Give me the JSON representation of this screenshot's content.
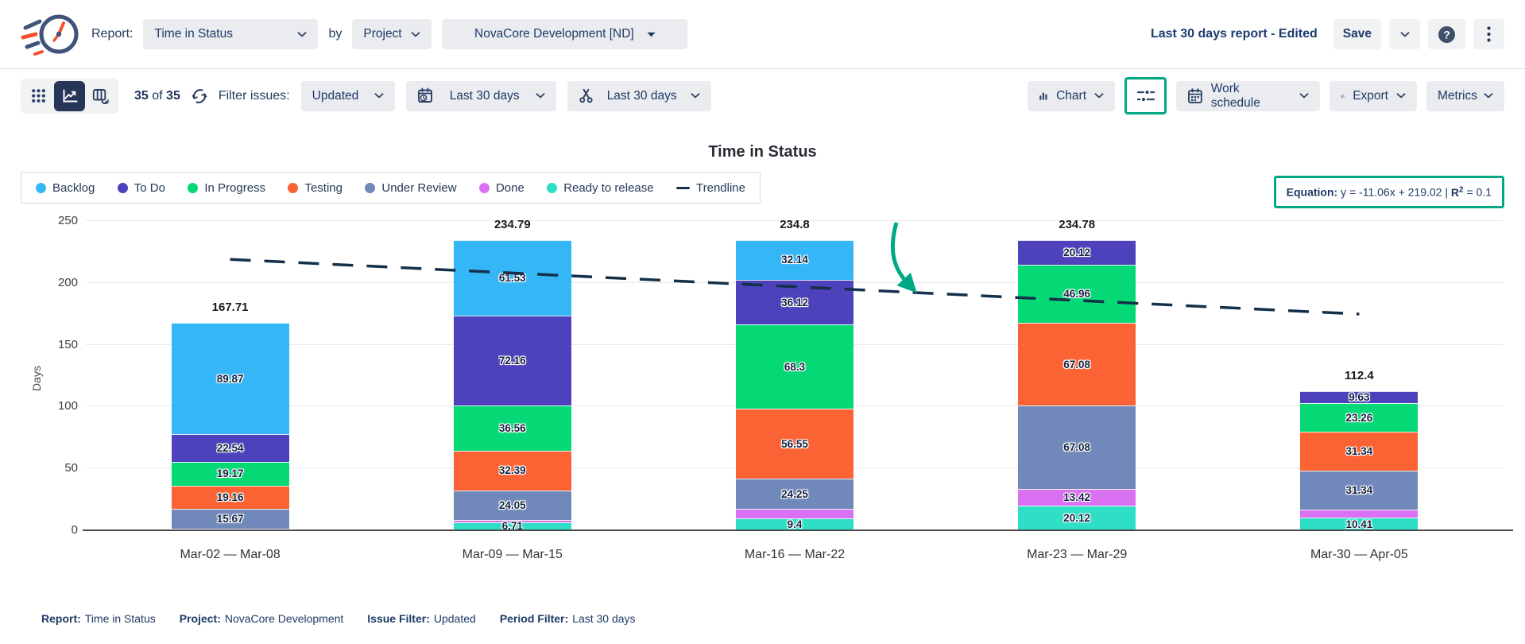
{
  "colors": {
    "accent_teal": "#00A885",
    "navy_text": "#1E3A66",
    "trendline": "#14304A"
  },
  "header": {
    "report_label": "Report:",
    "report_value": "Time in Status",
    "by_label": "by",
    "group_by_value": "Project",
    "project_value": "NovaCore Development [ND]",
    "report_status": "Last 30 days report",
    "report_status_suffix": "- Edited",
    "save_label": "Save"
  },
  "toolbar": {
    "count_current": "35",
    "count_of_label": "of",
    "count_total": "35",
    "filter_issues_label": "Filter issues:",
    "issue_filter_value": "Updated",
    "date_filter_value": "Last 30 days",
    "sprint_filter_value": "Last 30 days",
    "chart_button_label": "Chart",
    "work_schedule_label": "Work schedule",
    "export_label": "Export",
    "metrics_label": "Metrics"
  },
  "equation": {
    "label": "Equation:",
    "formula": "y = -11.06x + 219.02",
    "separator": "|",
    "r_symbol": "R",
    "r_exponent": "2",
    "r_value": "= 0.1"
  },
  "chart_data": {
    "type": "bar",
    "stacked": true,
    "title": "Time in Status",
    "ylabel": "Days",
    "ylim": [
      0,
      250
    ],
    "yticks": [
      0,
      50,
      100,
      150,
      200,
      250
    ],
    "grid": true,
    "legend_position": "top-left",
    "categories": [
      "Mar-02 — Mar-08",
      "Mar-09 — Mar-15",
      "Mar-16 — Mar-22",
      "Mar-23 — Mar-29",
      "Mar-30 — Apr-05"
    ],
    "totals": [
      "167.71",
      "234.79",
      "234.8",
      "234.78",
      "112.4"
    ],
    "series": [
      {
        "name": "Ready to release",
        "color": "#2EDFC6",
        "values": [
          0.9,
          6.71,
          9.4,
          20.12,
          10.41
        ],
        "labels": [
          "",
          "6.71",
          "9.4",
          "20.12",
          "10.41"
        ]
      },
      {
        "name": "Done",
        "color": "#DA70F2",
        "values": [
          0.4,
          1.39,
          8.04,
          13.42,
          6.42
        ],
        "labels": [
          "",
          "",
          "",
          "13.42",
          ""
        ]
      },
      {
        "name": "Under Review",
        "color": "#7189BA",
        "values": [
          15.67,
          24.05,
          24.25,
          67.08,
          31.34
        ],
        "labels": [
          "15.67",
          "24.05",
          "24.25",
          "67.08",
          "31.34"
        ]
      },
      {
        "name": "Testing",
        "color": "#FB6234",
        "values": [
          19.16,
          32.39,
          56.55,
          67.08,
          31.34
        ],
        "labels": [
          "19.16",
          "32.39",
          "56.55",
          "67.08",
          "31.34"
        ]
      },
      {
        "name": "In Progress",
        "color": "#05D976",
        "values": [
          19.17,
          36.56,
          68.3,
          46.96,
          23.26
        ],
        "labels": [
          "19.17",
          "36.56",
          "68.3",
          "46.96",
          "23.26"
        ]
      },
      {
        "name": "To Do",
        "color": "#4D41BC",
        "values": [
          22.54,
          72.16,
          36.12,
          20.12,
          9.63
        ],
        "labels": [
          "22.54",
          "72.16",
          "36.12",
          "20.12",
          "9.63"
        ]
      },
      {
        "name": "Backlog",
        "color": "#35B6F6",
        "values": [
          89.87,
          61.53,
          32.14,
          0,
          0
        ],
        "labels": [
          "89.87",
          "61.53",
          "32.14",
          "",
          ""
        ]
      }
    ],
    "legend_order": [
      "Backlog",
      "To Do",
      "In Progress",
      "Testing",
      "Under Review",
      "Done",
      "Ready to release",
      "Trendline"
    ],
    "trendline": {
      "name": "Trendline",
      "color": "#14304A",
      "equation": "y = -11.06x + 219.02",
      "r2": 0.1,
      "start_value": 219.02,
      "end_value": 174.78
    },
    "annotation_arrow": {
      "present": true,
      "color": "#00A885"
    }
  },
  "footer": {
    "items": [
      {
        "label": "Report:",
        "value": "Time in Status"
      },
      {
        "label": "Project:",
        "value": "NovaCore Development"
      },
      {
        "label": "Issue Filter:",
        "value": "Updated"
      },
      {
        "label": "Period Filter:",
        "value": "Last 30 days"
      }
    ]
  }
}
